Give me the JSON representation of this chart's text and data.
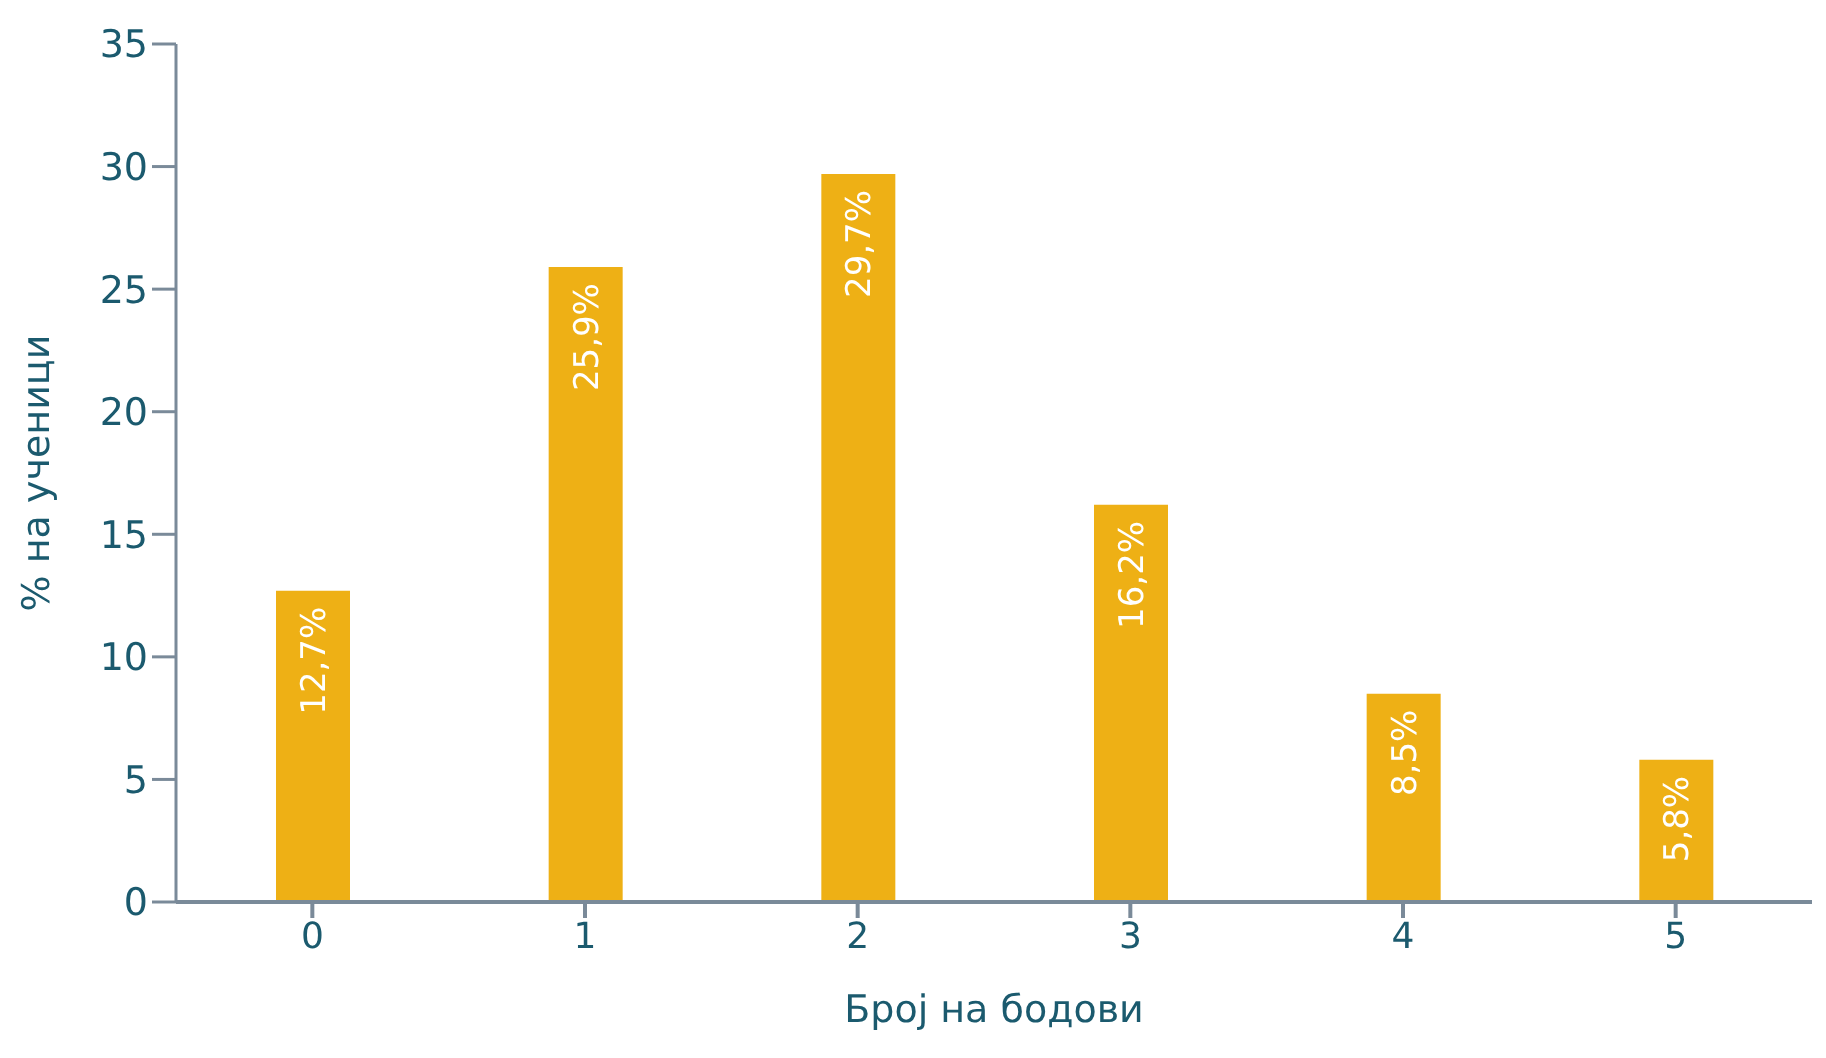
{
  "chart_data": {
    "type": "bar",
    "xlabel": "Број на бодови",
    "ylabel": "% на ученици",
    "categories": [
      "0",
      "1",
      "2",
      "3",
      "4",
      "5"
    ],
    "values": [
      12.7,
      25.9,
      29.7,
      16.2,
      8.5,
      5.8
    ],
    "value_labels": [
      "12,7%",
      "25,9%",
      "29,7%",
      "16,2%",
      "8,5%",
      "5,8%"
    ],
    "color": "#eeb015",
    "ylim": [
      0,
      35
    ],
    "yticks": [
      0,
      5,
      10,
      15,
      20,
      25,
      30,
      35
    ],
    "grid": false,
    "legend": false
  }
}
